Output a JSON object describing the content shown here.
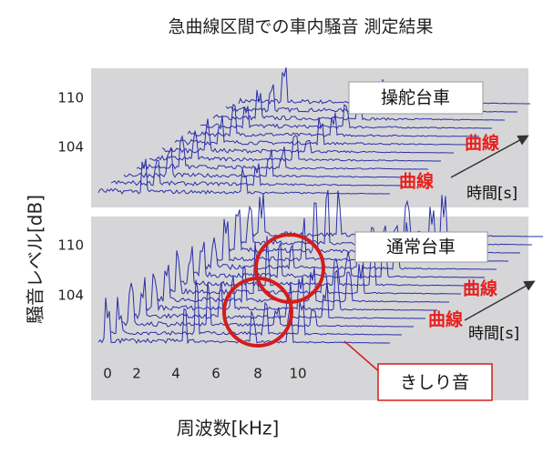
{
  "title": "急曲線区間での車内騒音 測定結果",
  "y_axis_label": "騒音レベル[dB]",
  "x_axis_label": "周波数[kHz]",
  "panels": [
    {
      "label": "操舵台車",
      "yticks": [
        110,
        104
      ],
      "curve_labels": [
        "曲線",
        "曲線"
      ],
      "time_label": "時間[s]"
    },
    {
      "label": "通常台車",
      "yticks": [
        110,
        104
      ],
      "curve_labels": [
        "曲線",
        "曲線"
      ],
      "time_label": "時間[s]",
      "xticks": [
        0,
        2,
        4,
        6,
        8,
        10
      ],
      "annotation": "きしり音"
    }
  ]
}
